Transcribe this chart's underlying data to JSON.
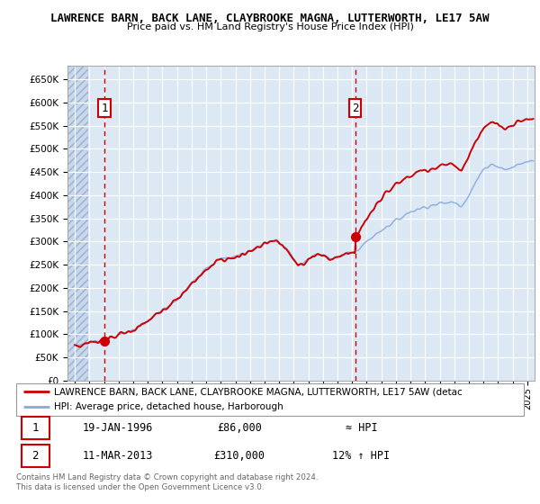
{
  "title": "LAWRENCE BARN, BACK LANE, CLAYBROOKE MAGNA, LUTTERWORTH, LE17 5AW",
  "subtitle": "Price paid vs. HM Land Registry's House Price Index (HPI)",
  "ylabel_values": [
    "£0",
    "£50K",
    "£100K",
    "£150K",
    "£200K",
    "£250K",
    "£300K",
    "£350K",
    "£400K",
    "£450K",
    "£500K",
    "£550K",
    "£600K",
    "£650K"
  ],
  "yticks": [
    0,
    50000,
    100000,
    150000,
    200000,
    250000,
    300000,
    350000,
    400000,
    450000,
    500000,
    550000,
    600000,
    650000
  ],
  "ylim": [
    0,
    680000
  ],
  "xlim_start": 1993.5,
  "xlim_end": 2025.5,
  "background_color": "#dce9f5",
  "grid_color": "#ffffff",
  "purchase1_year": 1996.05,
  "purchase1_price": 86000,
  "purchase2_year": 2013.2,
  "purchase2_price": 310000,
  "legend_line1": "LAWRENCE BARN, BACK LANE, CLAYBROOKE MAGNA, LUTTERWORTH, LE17 5AW (detac",
  "legend_line2": "HPI: Average price, detached house, Harborough",
  "annotation1_label": "1",
  "annotation2_label": "2",
  "table_row1": [
    "1",
    "19-JAN-1996",
    "£86,000",
    "≈ HPI"
  ],
  "table_row2": [
    "2",
    "11-MAR-2013",
    "£310,000",
    "12% ↑ HPI"
  ],
  "footer": "Contains HM Land Registry data © Crown copyright and database right 2024.\nThis data is licensed under the Open Government Licence v3.0.",
  "line_color_property": "#cc0000",
  "line_color_hpi": "#88aadd",
  "marker_color": "#cc0000",
  "dashed_line_color": "#cc0000"
}
